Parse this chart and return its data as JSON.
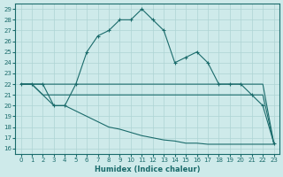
{
  "xlabel": "Humidex (Indice chaleur)",
  "xlim": [
    -0.5,
    23.5
  ],
  "ylim": [
    15.5,
    29.5
  ],
  "yticks": [
    16,
    17,
    18,
    19,
    20,
    21,
    22,
    23,
    24,
    25,
    26,
    27,
    28,
    29
  ],
  "xticks": [
    0,
    1,
    2,
    3,
    4,
    5,
    6,
    7,
    8,
    9,
    10,
    11,
    12,
    13,
    14,
    15,
    16,
    17,
    18,
    19,
    20,
    21,
    22,
    23
  ],
  "bg_color": "#ceeaea",
  "line_color": "#1a6b6b",
  "grid_color": "#aed4d4",
  "lines": [
    {
      "x": [
        0,
        1,
        2,
        3,
        4,
        5,
        6,
        7,
        8,
        9,
        10,
        11,
        12,
        13,
        14,
        15,
        16,
        17,
        18,
        19,
        20,
        21,
        22,
        23
      ],
      "y": [
        22,
        22,
        22,
        20,
        20,
        22,
        25,
        26.5,
        27,
        28,
        28,
        29,
        28,
        27,
        24,
        24.5,
        25,
        24,
        22,
        22,
        22,
        21,
        20,
        16.5
      ],
      "has_markers": true
    },
    {
      "x": [
        0,
        1,
        2,
        3,
        4,
        5,
        6,
        7,
        8,
        9,
        10,
        11,
        12,
        13,
        14,
        15,
        16,
        17,
        18,
        19,
        20,
        21,
        22,
        23
      ],
      "y": [
        22,
        22,
        22,
        22,
        22,
        22,
        22,
        22,
        22,
        22,
        22,
        22,
        22,
        22,
        22,
        22,
        22,
        22,
        22,
        22,
        22,
        22,
        22,
        16.5
      ],
      "has_markers": false
    },
    {
      "x": [
        0,
        1,
        2,
        3,
        4,
        5,
        6,
        7,
        8,
        9,
        10,
        11,
        12,
        13,
        14,
        15,
        16,
        17,
        18,
        19,
        20,
        21,
        22,
        23
      ],
      "y": [
        22,
        22,
        21,
        21,
        21,
        21,
        21,
        21,
        21,
        21,
        21,
        21,
        21,
        21,
        21,
        21,
        21,
        21,
        21,
        21,
        21,
        21,
        21,
        16.5
      ],
      "has_markers": false
    },
    {
      "x": [
        0,
        1,
        2,
        3,
        4,
        5,
        6,
        7,
        8,
        9,
        10,
        11,
        12,
        13,
        14,
        15,
        16,
        17,
        18,
        19,
        20,
        21,
        22,
        23
      ],
      "y": [
        22,
        22,
        21,
        20,
        20,
        19.5,
        19,
        18.5,
        18,
        17.8,
        17.5,
        17.2,
        17,
        16.8,
        16.7,
        16.5,
        16.5,
        16.4,
        16.4,
        16.4,
        16.4,
        16.4,
        16.4,
        16.4
      ],
      "has_markers": false
    }
  ]
}
